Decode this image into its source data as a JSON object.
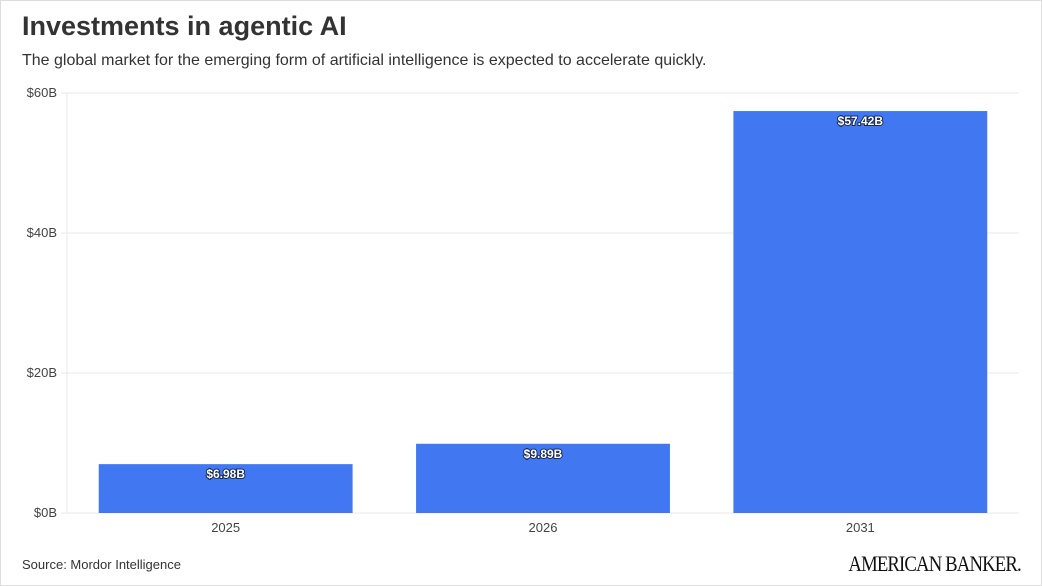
{
  "title": "Investments in agentic AI",
  "subtitle": "The global market for the emerging form of artificial intelligence is expected to accelerate quickly.",
  "source": "Source: Mordor Intelligence",
  "logo_text": "AMERICAN BANKER.",
  "colors": {
    "bar": "#4178F2",
    "grid": "#e8e8e8",
    "text": "#333333"
  },
  "chart_data": {
    "type": "bar",
    "title": "Investments in agentic AI",
    "xlabel": "",
    "ylabel": "",
    "categories": [
      "2025",
      "2026",
      "2031"
    ],
    "values": [
      6.98,
      9.89,
      57.42
    ],
    "data_labels": [
      "$6.98B",
      "$9.89B",
      "$57.42B"
    ],
    "ylim": [
      0,
      60
    ],
    "yticks": [
      0,
      20,
      40,
      60
    ],
    "ytick_labels": [
      "$0B",
      "$20B",
      "$40B",
      "$60B"
    ],
    "grid": true,
    "legend": "none"
  }
}
